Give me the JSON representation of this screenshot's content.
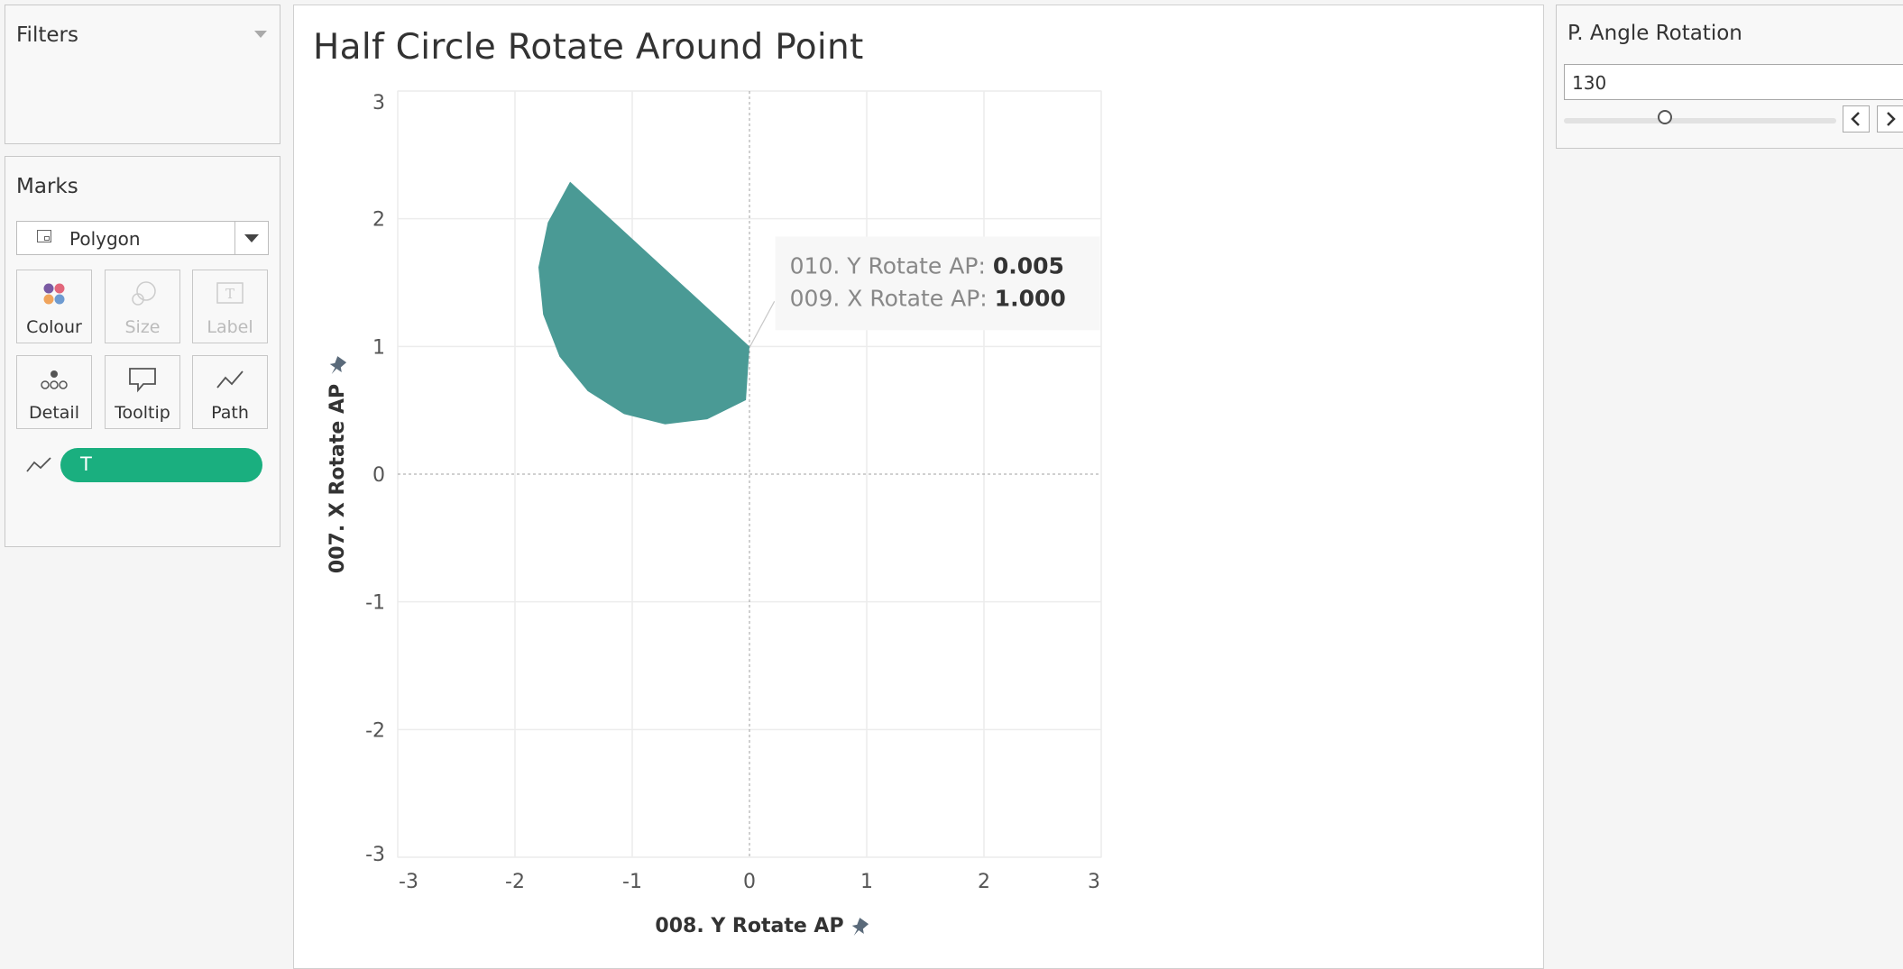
{
  "filters": {
    "title": "Filters"
  },
  "marks": {
    "title": "Marks",
    "mark_type": "Polygon",
    "buttons": {
      "colour": "Colour",
      "size": "Size",
      "label": "Label",
      "detail": "Detail",
      "tooltip": "Tooltip",
      "path": "Path"
    },
    "pill": {
      "label": "T",
      "color": "#1aaf7f"
    }
  },
  "view": {
    "title": "Half Circle Rotate Around Point",
    "tooltip": {
      "line1_label": "010. Y Rotate AP:",
      "line1_value": "0.005",
      "line2_label": "009. X Rotate AP:",
      "line2_value": "1.000"
    }
  },
  "parameter": {
    "title": "P. Angle Rotation",
    "value": "130",
    "slider_fraction": 0.4,
    "prev_icon": "chevron-left-icon",
    "next_icon": "chevron-right-icon"
  },
  "chart_data": {
    "type": "area",
    "title": "Half Circle Rotate Around Point",
    "xlabel": "008. Y Rotate AP",
    "ylabel": "007. X Rotate AP",
    "xlim": [
      -3,
      3
    ],
    "ylim": [
      -3,
      3
    ],
    "xticks": [
      "-3",
      "-2",
      "-1",
      "0",
      "1",
      "2",
      "3"
    ],
    "yticks": [
      "3",
      "2",
      "1",
      "0",
      "-1",
      "-2",
      "-3"
    ],
    "grid": true,
    "fill_color": "#4a9a95",
    "rotation_center": [
      0.0,
      1.0
    ],
    "rotation_angle_deg": 130,
    "radius": 1,
    "polygon_points": [
      [
        0.0,
        1.0
      ],
      [
        -1.53,
        2.29
      ],
      [
        -1.72,
        1.97
      ],
      [
        -1.8,
        1.62
      ],
      [
        -1.76,
        1.25
      ],
      [
        -1.62,
        0.92
      ],
      [
        -1.38,
        0.65
      ],
      [
        -1.07,
        0.47
      ],
      [
        -0.72,
        0.39
      ],
      [
        -0.36,
        0.43
      ],
      [
        -0.03,
        0.58
      ],
      [
        0.0,
        1.0
      ]
    ],
    "highlighted_point": {
      "x": 0.005,
      "y": 1.0
    }
  }
}
